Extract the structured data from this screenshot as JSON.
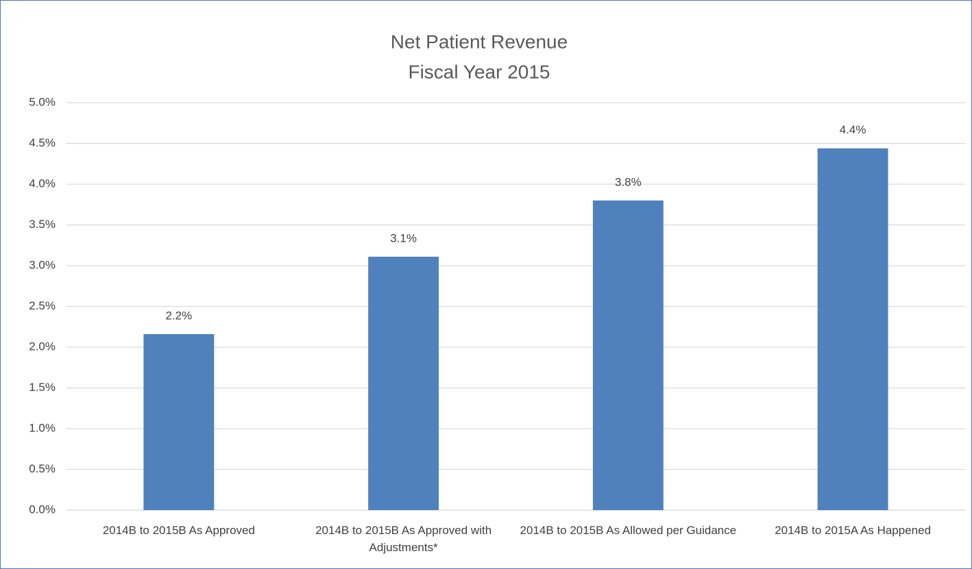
{
  "chart_data": {
    "type": "bar",
    "title": "Net Patient Revenue",
    "subtitle": "Fiscal Year 2015",
    "categories": [
      "2014B to 2015B As Approved",
      "2014B to 2015B As Approved with Adjustments*",
      "2014B to 2015B  As Allowed per Guidance",
      "2014B to 2015A As Happened"
    ],
    "values": [
      2.16,
      3.11,
      3.8,
      4.44
    ],
    "value_labels": [
      "2.2%",
      "3.1%",
      "3.8%",
      "4.4%"
    ],
    "color": "#4f81bd",
    "ylim": [
      0,
      5
    ],
    "yticks": [
      {
        "value": 0,
        "label": "0.0%"
      },
      {
        "value": 0.5,
        "label": "0.5%"
      },
      {
        "value": 1,
        "label": "1.0%"
      },
      {
        "value": 1.5,
        "label": "1.5%"
      },
      {
        "value": 2,
        "label": "2.0%"
      },
      {
        "value": 2.5,
        "label": "2.5%"
      },
      {
        "value": 3,
        "label": "3.0%"
      },
      {
        "value": 3.5,
        "label": "3.5%"
      },
      {
        "value": 4,
        "label": "4.0%"
      },
      {
        "value": 4.5,
        "label": "4.5%"
      },
      {
        "value": 5,
        "label": "5.0%"
      }
    ],
    "grid": true
  }
}
